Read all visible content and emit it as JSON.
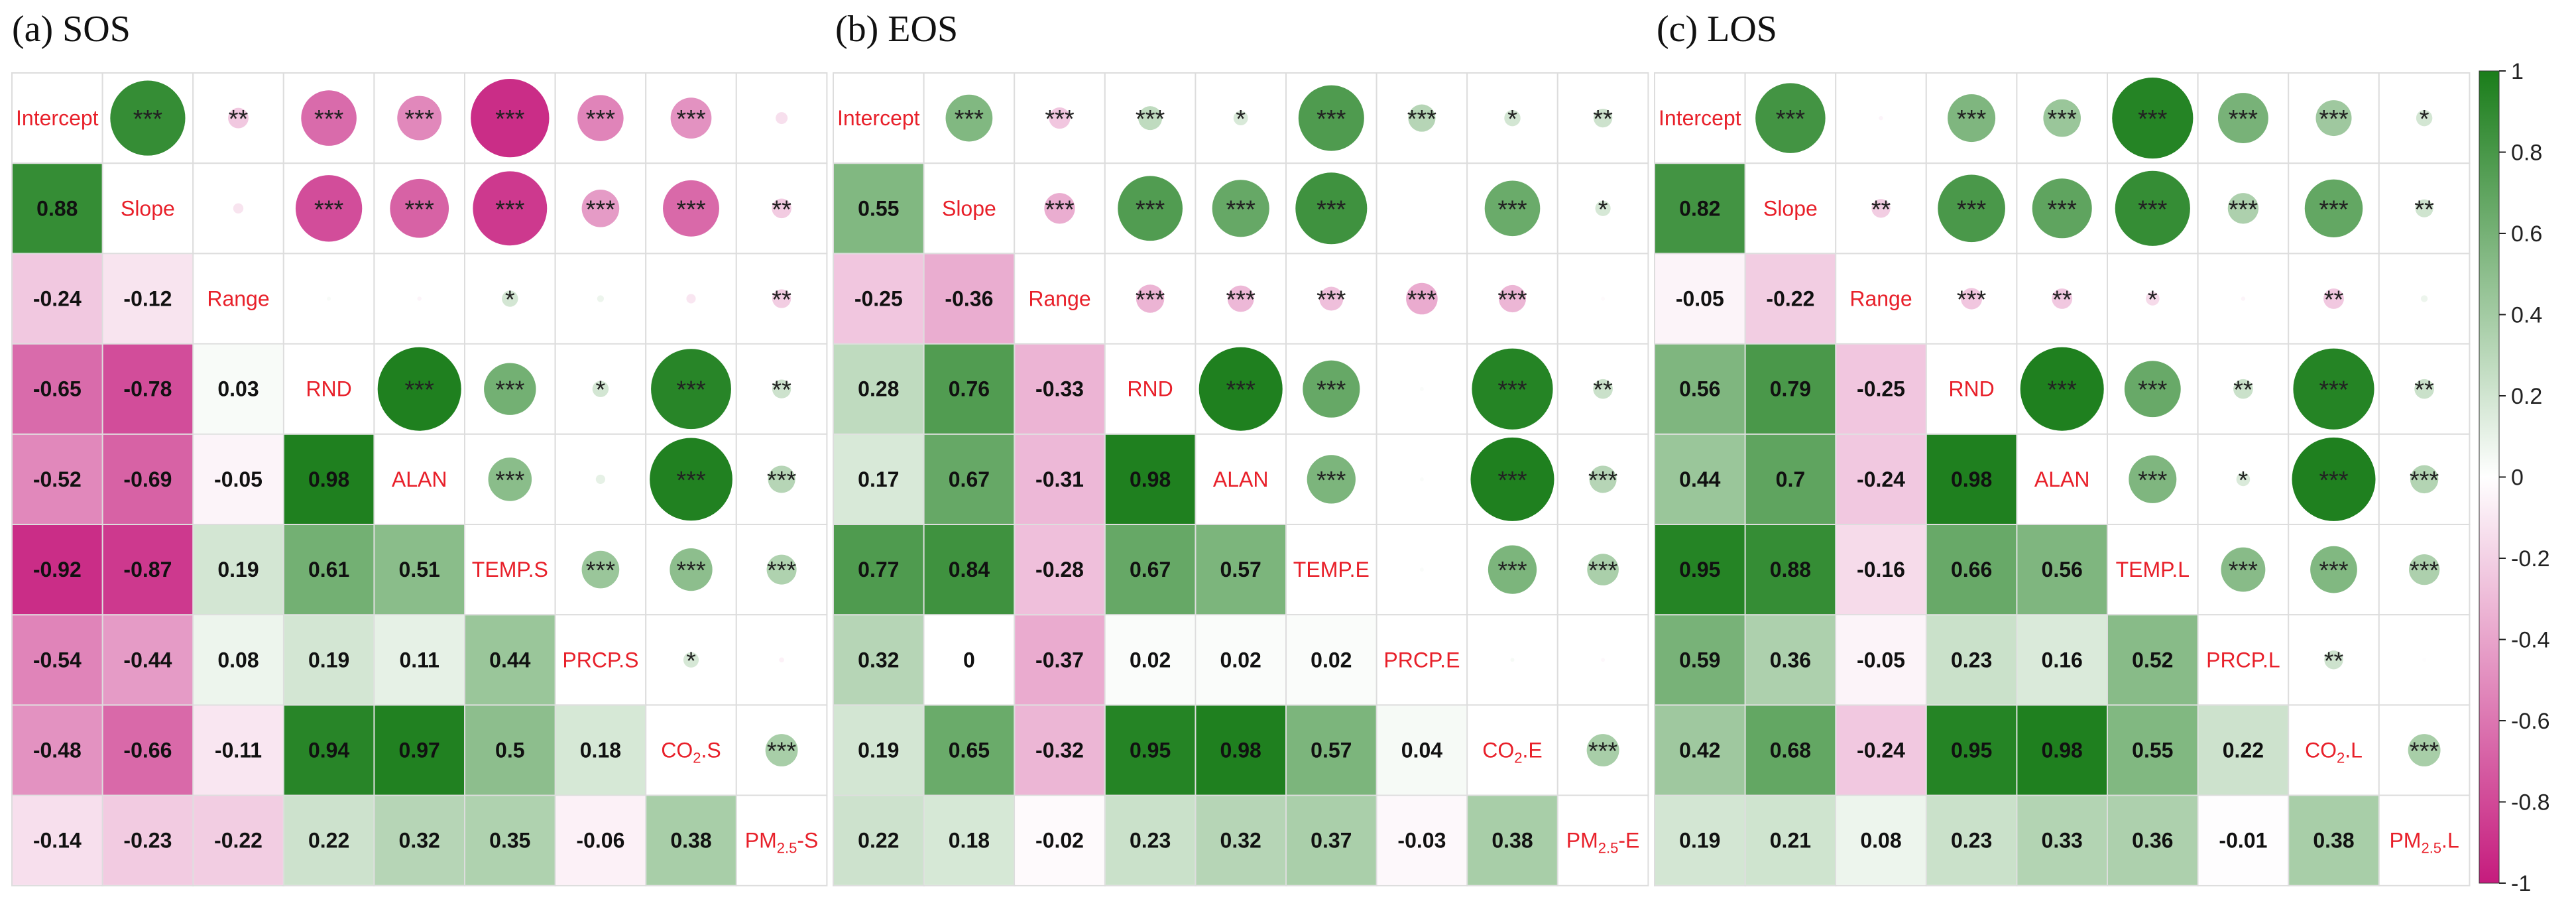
{
  "chart_data": [
    {
      "type": "heatmap",
      "title": "(a) SOS",
      "variables": [
        "Intercept",
        "Slope",
        "Range",
        "RND",
        "ALAN",
        "TEMP.S",
        "PRCP.S",
        "CO2.S",
        "PM2.5.S"
      ],
      "labels": [
        {
          "base": "Intercept",
          "sub": "",
          "suffix": ""
        },
        {
          "base": "Slope",
          "sub": "",
          "suffix": ""
        },
        {
          "base": "Range",
          "sub": "",
          "suffix": ""
        },
        {
          "base": "RND",
          "sub": "",
          "suffix": ""
        },
        {
          "base": "ALAN",
          "sub": "",
          "suffix": ""
        },
        {
          "base": "TEMP.S",
          "sub": "",
          "suffix": ""
        },
        {
          "base": "PRCP.S",
          "sub": "",
          "suffix": ""
        },
        {
          "base": "CO",
          "sub": "2",
          "suffix": ".S"
        },
        {
          "base": "PM",
          "sub": "2.5",
          "suffix": "-S"
        }
      ],
      "lower": [
        [
          1,
          0.88
        ],
        [
          2,
          -0.24,
          -0.12
        ],
        [
          3,
          -0.65,
          -0.78,
          0.03
        ],
        [
          4,
          -0.52,
          -0.69,
          -0.05,
          0.98
        ],
        [
          5,
          -0.92,
          -0.87,
          0.19,
          0.61,
          0.51
        ],
        [
          6,
          -0.54,
          -0.44,
          0.08,
          0.19,
          0.11,
          0.44
        ],
        [
          7,
          -0.48,
          -0.66,
          -0.11,
          0.94,
          0.97,
          0.5,
          0.18
        ],
        [
          8,
          -0.14,
          -0.23,
          -0.22,
          0.22,
          0.32,
          0.35,
          -0.06,
          0.38
        ]
      ],
      "coef_text": [
        [
          "0.88"
        ],
        [
          "-0.24",
          "-0.12"
        ],
        [
          "-0.65",
          "-0.78",
          "0.03"
        ],
        [
          "-0.52",
          "-0.69",
          "-0.05",
          "0.98"
        ],
        [
          "-0.92",
          "-0.87",
          "0.19",
          "0.61",
          "0.51"
        ],
        [
          "-0.54",
          "-0.44",
          "0.08",
          "0.19",
          "0.11",
          "0.44"
        ],
        [
          "-0.48",
          "-0.66",
          "-0.11",
          "0.94",
          "0.97",
          "0.5",
          "0.18"
        ],
        [
          "-0.14",
          "-0.23",
          "-0.22",
          "0.22",
          "0.32",
          "0.35",
          "-0.06",
          "0.38"
        ]
      ],
      "significance": [
        [
          "***",
          "**",
          "***",
          "***",
          "***",
          "***",
          "***",
          ""
        ],
        [
          "",
          "***",
          "***",
          "***",
          "***",
          "***",
          "**"
        ],
        [
          "",
          "",
          "*",
          "",
          "",
          "**"
        ],
        [
          "***",
          "***",
          "*",
          "***",
          "**"
        ],
        [
          "***",
          "",
          "***",
          "***"
        ],
        [
          "***",
          "***",
          "***"
        ],
        [
          "*",
          ""
        ],
        [
          "***"
        ]
      ]
    },
    {
      "type": "heatmap",
      "title": "(b) EOS",
      "variables": [
        "Intercept",
        "Slope",
        "Range",
        "RND",
        "ALAN",
        "TEMP.E",
        "PRCP.E",
        "CO2.E",
        "PM2.5.E"
      ],
      "labels": [
        {
          "base": "Intercept",
          "sub": "",
          "suffix": ""
        },
        {
          "base": "Slope",
          "sub": "",
          "suffix": ""
        },
        {
          "base": "Range",
          "sub": "",
          "suffix": ""
        },
        {
          "base": "RND",
          "sub": "",
          "suffix": ""
        },
        {
          "base": "ALAN",
          "sub": "",
          "suffix": ""
        },
        {
          "base": "TEMP.E",
          "sub": "",
          "suffix": ""
        },
        {
          "base": "PRCP.E",
          "sub": "",
          "suffix": ""
        },
        {
          "base": "CO",
          "sub": "2",
          "suffix": ".E"
        },
        {
          "base": "PM",
          "sub": "2.5",
          "suffix": "-E"
        }
      ],
      "lower": [
        [
          1,
          0.55
        ],
        [
          2,
          -0.25,
          -0.36
        ],
        [
          3,
          0.28,
          0.76,
          -0.33
        ],
        [
          4,
          0.17,
          0.67,
          -0.31,
          0.98
        ],
        [
          5,
          0.77,
          0.84,
          -0.28,
          0.67,
          0.57
        ],
        [
          6,
          0.32,
          0,
          -0.37,
          0.02,
          0.02,
          0.02
        ],
        [
          7,
          0.19,
          0.65,
          -0.32,
          0.95,
          0.98,
          0.57,
          0.04
        ],
        [
          8,
          0.22,
          0.18,
          -0.02,
          0.23,
          0.32,
          0.37,
          -0.03,
          0.38
        ]
      ],
      "coef_text": [
        [
          "0.55"
        ],
        [
          "-0.25",
          "-0.36"
        ],
        [
          "0.28",
          "0.76",
          "-0.33"
        ],
        [
          "0.17",
          "0.67",
          "-0.31",
          "0.98"
        ],
        [
          "0.77",
          "0.84",
          "-0.28",
          "0.67",
          "0.57"
        ],
        [
          "0.32",
          "0",
          "-0.37",
          "0.02",
          "0.02",
          "0.02"
        ],
        [
          "0.19",
          "0.65",
          "-0.32",
          "0.95",
          "0.98",
          "0.57",
          "0.04"
        ],
        [
          "0.22",
          "0.18",
          "-0.02",
          "0.23",
          "0.32",
          "0.37",
          "-0.03",
          "0.38"
        ]
      ],
      "significance": [
        [
          "***",
          "***",
          "***",
          "*",
          "***",
          "***",
          "*",
          "**"
        ],
        [
          "***",
          "***",
          "***",
          "***",
          "",
          "***",
          "*"
        ],
        [
          "***",
          "***",
          "***",
          "***",
          "***",
          ""
        ],
        [
          "***",
          "***",
          "",
          "***",
          "**"
        ],
        [
          "***",
          "",
          "***",
          "***"
        ],
        [
          "",
          "***",
          "***"
        ],
        [
          "",
          ""
        ],
        [
          "***"
        ]
      ]
    },
    {
      "type": "heatmap",
      "title": "(c) LOS",
      "variables": [
        "Intercept",
        "Slope",
        "Range",
        "RND",
        "ALAN",
        "TEMP.L",
        "PRCP.L",
        "CO2.L",
        "PM2.5.L"
      ],
      "labels": [
        {
          "base": "Intercept",
          "sub": "",
          "suffix": ""
        },
        {
          "base": "Slope",
          "sub": "",
          "suffix": ""
        },
        {
          "base": "Range",
          "sub": "",
          "suffix": ""
        },
        {
          "base": "RND",
          "sub": "",
          "suffix": ""
        },
        {
          "base": "ALAN",
          "sub": "",
          "suffix": ""
        },
        {
          "base": "TEMP.L",
          "sub": "",
          "suffix": ""
        },
        {
          "base": "PRCP.L",
          "sub": "",
          "suffix": ""
        },
        {
          "base": "CO",
          "sub": "2",
          "suffix": ".L"
        },
        {
          "base": "PM",
          "sub": "2.5",
          "suffix": ".L"
        }
      ],
      "lower": [
        [
          1,
          0.82
        ],
        [
          2,
          -0.05,
          -0.22
        ],
        [
          3,
          0.56,
          0.79,
          -0.25
        ],
        [
          4,
          0.44,
          0.7,
          -0.24,
          0.98
        ],
        [
          5,
          0.95,
          0.88,
          -0.16,
          0.66,
          0.56
        ],
        [
          6,
          0.59,
          0.36,
          -0.05,
          0.23,
          0.16,
          0.52
        ],
        [
          7,
          0.42,
          0.68,
          -0.24,
          0.95,
          0.98,
          0.55,
          0.22
        ],
        [
          8,
          0.19,
          0.21,
          0.08,
          0.23,
          0.33,
          0.36,
          -0.01,
          0.38
        ]
      ],
      "coef_text": [
        [
          "0.82"
        ],
        [
          "-0.05",
          "-0.22"
        ],
        [
          "0.56",
          "0.79",
          "-0.25"
        ],
        [
          "0.44",
          "0.7",
          "-0.24",
          "0.98"
        ],
        [
          "0.95",
          "0.88",
          "-0.16",
          "0.66",
          "0.56"
        ],
        [
          "0.59",
          "0.36",
          "-0.05",
          "0.23",
          "0.16",
          "0.52"
        ],
        [
          "0.42",
          "0.68",
          "-0.24",
          "0.95",
          "0.98",
          "0.55",
          "0.22"
        ],
        [
          "0.19",
          "0.21",
          "0.08",
          "0.23",
          "0.33",
          "0.36",
          "-0.01",
          "0.38"
        ]
      ],
      "significance": [
        [
          "***",
          "",
          "***",
          "***",
          "***",
          "***",
          "***",
          "*"
        ],
        [
          "**",
          "***",
          "***",
          "***",
          "***",
          "***",
          "**"
        ],
        [
          "***",
          "**",
          "*",
          "",
          "**",
          ""
        ],
        [
          "***",
          "***",
          "**",
          "***",
          "**"
        ],
        [
          "***",
          "*",
          "***",
          "***"
        ],
        [
          "***",
          "***",
          "***"
        ],
        [
          "**",
          ""
        ],
        [
          "***"
        ]
      ]
    }
  ],
  "colorbar": {
    "range": [
      -1,
      1
    ],
    "ticks": [
      1,
      0.8,
      0.6,
      0.4,
      0.2,
      0,
      -0.2,
      -0.4,
      -0.6,
      -0.8,
      -1
    ],
    "tick_labels": [
      "1",
      "0.8",
      "0.6",
      "0.4",
      "0.2",
      "0",
      "-0.2",
      "-0.4",
      "-0.6",
      "-0.8",
      "-1"
    ],
    "colors": {
      "negative": "#c51b7d",
      "mid": "#ffffff",
      "positive": "#1a7d1a"
    }
  },
  "styles": {
    "label_color": "#e8202a",
    "text_color": "#111111",
    "grid_color": "#dddddd"
  }
}
